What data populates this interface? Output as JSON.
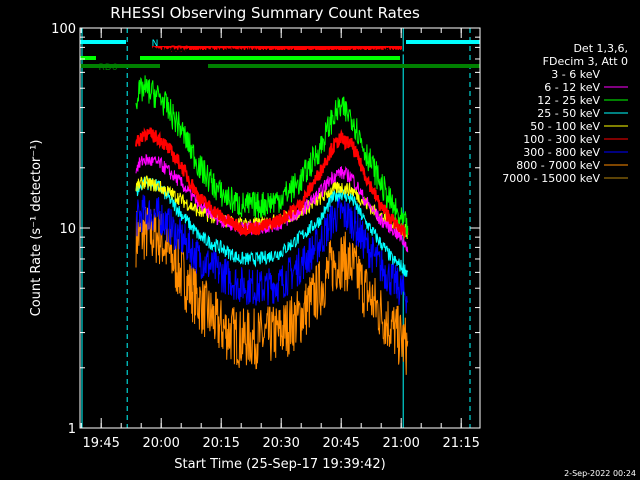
{
  "chart_data": {
    "type": "line",
    "title": "RHESSI Observing Summary Count Rates",
    "xlabel": "Start Time (25-Sep-17 19:39:42)",
    "ylabel": "Count Rate (s⁻¹ detector⁻¹)",
    "yscale": "log",
    "ylim": [
      1,
      100
    ],
    "xlim_minutes": [
      0,
      100
    ],
    "x_ticks": [
      {
        "label": "19:45",
        "value": 5.3
      },
      {
        "label": "20:00",
        "value": 20.3
      },
      {
        "label": "20:15",
        "value": 35.3
      },
      {
        "label": "20:30",
        "value": 50.3
      },
      {
        "label": "20:45",
        "value": 65.3
      },
      {
        "label": "21:00",
        "value": 80.3
      },
      {
        "label": "21:15",
        "value": 95.3
      }
    ],
    "y_ticks": [
      {
        "label": "1",
        "value": 1
      },
      {
        "label": "10",
        "value": 10
      },
      {
        "label": "100",
        "value": 100
      }
    ],
    "legend_header": [
      "Det 1,3,6,",
      "FDecim 3, Att 0"
    ],
    "series": [
      {
        "name": "3 - 6 keV",
        "color": "#000000",
        "x": [
          14,
          16,
          20,
          30,
          40,
          50,
          60,
          70,
          78,
          80,
          82
        ],
        "y": [
          82,
          80,
          78,
          77,
          77,
          76,
          76,
          76,
          77,
          76,
          75
        ]
      },
      {
        "name": "6 - 12 keV",
        "color": "#ff00ff",
        "x": [
          14,
          16,
          20,
          25,
          30,
          35,
          40,
          45,
          50,
          55,
          60,
          63,
          65,
          68,
          71,
          75,
          78,
          80,
          82
        ],
        "y": [
          20,
          22,
          21,
          17,
          13,
          11,
          10,
          10,
          10.5,
          12,
          15,
          18,
          19,
          18,
          14,
          11,
          10,
          9,
          8
        ]
      },
      {
        "name": "12 - 25 keV",
        "color": "#00ff00",
        "x": [
          14,
          16,
          20,
          25,
          30,
          35,
          40,
          45,
          50,
          55,
          60,
          63,
          65,
          68,
          71,
          75,
          78,
          80,
          82
        ],
        "y": [
          45,
          50,
          45,
          32,
          20,
          15,
          13,
          13,
          14,
          17,
          25,
          35,
          40,
          36,
          25,
          17,
          13,
          11,
          10
        ]
      },
      {
        "name": "25 - 50 keV",
        "color": "#00ffff",
        "x": [
          14,
          16,
          20,
          25,
          30,
          35,
          40,
          45,
          50,
          55,
          60,
          63,
          65,
          68,
          71,
          75,
          78,
          80,
          82
        ],
        "y": [
          15,
          17,
          16,
          12,
          9,
          8,
          7,
          7,
          7.5,
          9,
          11,
          14,
          15,
          14,
          11,
          8.5,
          7,
          6.5,
          6
        ]
      },
      {
        "name": "50 - 100 keV",
        "color": "#ffff00",
        "x": [
          14,
          16,
          20,
          25,
          30,
          35,
          40,
          45,
          50,
          55,
          60,
          63,
          65,
          68,
          71,
          75,
          78,
          80,
          82
        ],
        "y": [
          16,
          17,
          16,
          14,
          12,
          11,
          10.5,
          10.5,
          11,
          12,
          14,
          15.5,
          16,
          15.5,
          13.5,
          11.5,
          10.5,
          10,
          9.5
        ]
      },
      {
        "name": "100 - 300 keV",
        "color": "#ff0000",
        "x": [
          14,
          16,
          20,
          25,
          30,
          35,
          40,
          45,
          50,
          55,
          60,
          63,
          65,
          68,
          71,
          75,
          78,
          80,
          82
        ],
        "y": [
          26,
          30,
          28,
          21,
          14,
          11.5,
          10,
          10,
          11,
          13,
          19,
          25,
          28,
          26,
          19,
          13,
          11,
          10,
          9.5
        ]
      },
      {
        "name": "300 - 800 keV",
        "color": "#0000ff",
        "x": [
          14,
          16,
          20,
          25,
          30,
          35,
          40,
          45,
          50,
          55,
          60,
          63,
          65,
          68,
          71,
          75,
          78,
          80,
          82
        ],
        "y": [
          11,
          12,
          11.5,
          9,
          7,
          6,
          5.2,
          5,
          5.3,
          6.5,
          8.5,
          11,
          12,
          11,
          8.5,
          6.5,
          5.5,
          5,
          4.5
        ]
      },
      {
        "name": "800 - 7000 keV",
        "color": "#ff8c00",
        "x": [
          14,
          16,
          20,
          25,
          30,
          35,
          40,
          45,
          50,
          55,
          60,
          63,
          65,
          68,
          71,
          75,
          78,
          80,
          82
        ],
        "y": [
          9,
          9.5,
          9,
          6,
          4.2,
          3.2,
          2.8,
          2.8,
          3,
          3.6,
          5,
          6.5,
          7,
          6.5,
          5,
          3.8,
          3.2,
          2.8,
          2.5
        ]
      },
      {
        "name": "7000 - 15000 keV",
        "color": "#b8860b",
        "x": [],
        "y": []
      }
    ],
    "flags": [
      {
        "label": "N",
        "color": "#00ffff",
        "segments": [
          [
            0,
            11.5
          ],
          [
            81.5,
            100
          ]
        ]
      },
      {
        "label": "RD0",
        "color": "#ff0000",
        "segments": [
          [
            18,
            80.5
          ]
        ]
      },
      {
        "label": "",
        "color": "#00ff00",
        "segments": [
          [
            0,
            4
          ],
          [
            15,
            80
          ]
        ]
      },
      {
        "label": "RD6",
        "color": "#008000",
        "segments": [
          [
            0,
            20
          ],
          [
            32,
            100
          ]
        ]
      }
    ],
    "vertical_lines": [
      {
        "x": 0.5,
        "style": "solid",
        "color": "#00ffff"
      },
      {
        "x": 11.8,
        "style": "dashed",
        "color": "#00ffff"
      },
      {
        "x": 80.8,
        "style": "solid",
        "color": "#00ffff"
      },
      {
        "x": 97.5,
        "style": "dashed",
        "color": "#00ffff"
      }
    ],
    "footer_date": "2-Sep-2022 00:24"
  }
}
